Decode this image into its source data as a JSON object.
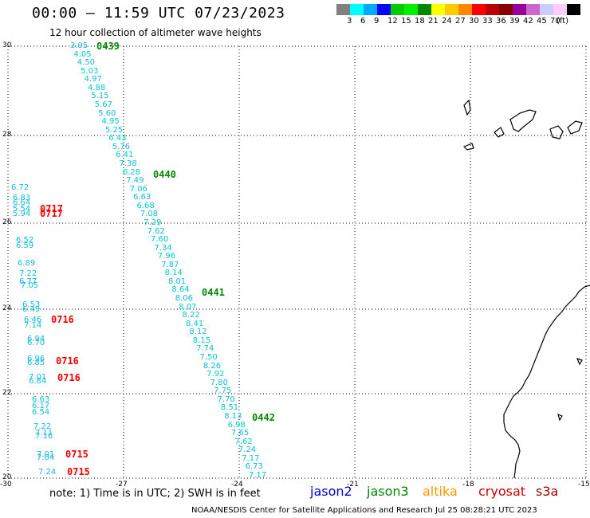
{
  "header": {
    "title": "00:00 – 11:59 UTC 07/23/2023",
    "subtitle": "12 hour collection of altimeter wave heights"
  },
  "colorbar": {
    "colors": [
      "#808080",
      "#00ffff",
      "#00aaff",
      "#0000ff",
      "#00cc00",
      "#00ee00",
      "#008800",
      "#ffff00",
      "#ffcc00",
      "#ff8800",
      "#ff0000",
      "#bb0000",
      "#880000",
      "#990099",
      "#cc66cc",
      "#ccccff",
      "#ffccff",
      "#000000"
    ],
    "labels": [
      "3",
      "6",
      "9",
      "12",
      "15",
      "18",
      "21",
      "24",
      "27",
      "30",
      "33",
      "36",
      "39",
      "42",
      "45",
      "70",
      "(ft)"
    ]
  },
  "axes": {
    "y_ticks": [
      "30",
      "28",
      "26",
      "24",
      "22",
      "20"
    ],
    "x_ticks": [
      "-30",
      "-27",
      "-24",
      "-21",
      "-18",
      "-15"
    ]
  },
  "passes": [
    {
      "id": "0439",
      "color": "#008800"
    },
    {
      "id": "0440",
      "color": "#008800"
    },
    {
      "id": "0441",
      "color": "#008800"
    },
    {
      "id": "0442",
      "color": "#008800"
    },
    {
      "id": "0717",
      "color": "#ee0000"
    },
    {
      "id": "0717",
      "color": "#ee0000"
    },
    {
      "id": "0716",
      "color": "#ee0000"
    },
    {
      "id": "0716",
      "color": "#ee0000"
    },
    {
      "id": "0716",
      "color": "#ee0000"
    },
    {
      "id": "0715",
      "color": "#ee0000"
    },
    {
      "id": "0715",
      "color": "#ee0000"
    }
  ],
  "track_jason3": [
    "3.95",
    "4.05",
    "4.50",
    "5.03",
    "4.97",
    "4.88",
    "5.15",
    "5.67",
    "5.60",
    "4.95",
    "5.25",
    "6.43",
    "5.76",
    "6.41",
    "7.38",
    "6.28",
    "7.49",
    "7.06",
    "6.63",
    "6.68",
    "7.08",
    "7.29",
    "7.62",
    "7.60",
    "7.34",
    "7.96",
    "7.87",
    "8.14",
    "8.01",
    "8.64",
    "8.06",
    "8.07",
    "8.22",
    "8.41",
    "8.12",
    "8.15",
    "7.74",
    "7.50",
    "8.26",
    "7.92",
    "7.80",
    "7.75",
    "7.70",
    "8.51",
    "8.13",
    "6.98",
    "7.65",
    "7.62",
    "7.24",
    "7.17",
    "6.73",
    "7.17"
  ],
  "track_cryosat": [
    "6.72",
    "6.83",
    "6.64",
    "5.54",
    "5.94",
    "6.52",
    "6.59",
    "6.89",
    "7.22",
    "6.77",
    "7.05",
    "6.53",
    "6.49",
    "6.46",
    "7.14",
    "6.94",
    "6.70",
    "6.96",
    "6.85",
    "7.01",
    "6.84",
    "6.63",
    "6.17",
    "6.54",
    "7.22",
    "7.11",
    "7.16",
    "7.01",
    "7.04",
    "7.24"
  ],
  "legend": [
    {
      "label": "jason2",
      "color": "#0000cc"
    },
    {
      "label": "jason3",
      "color": "#008800"
    },
    {
      "label": "altika",
      "color": "#ff9900"
    },
    {
      "label": "cryosat",
      "color": "#cc0000"
    },
    {
      "label": "s3a",
      "color": "#990000"
    }
  ],
  "note": "note: 1) Time is in UTC; 2) SWH is in feet",
  "footer": "NOAA/NESDIS Center for Satellite Applications and Research   Jul 25 08:28:21 UTC 2023"
}
